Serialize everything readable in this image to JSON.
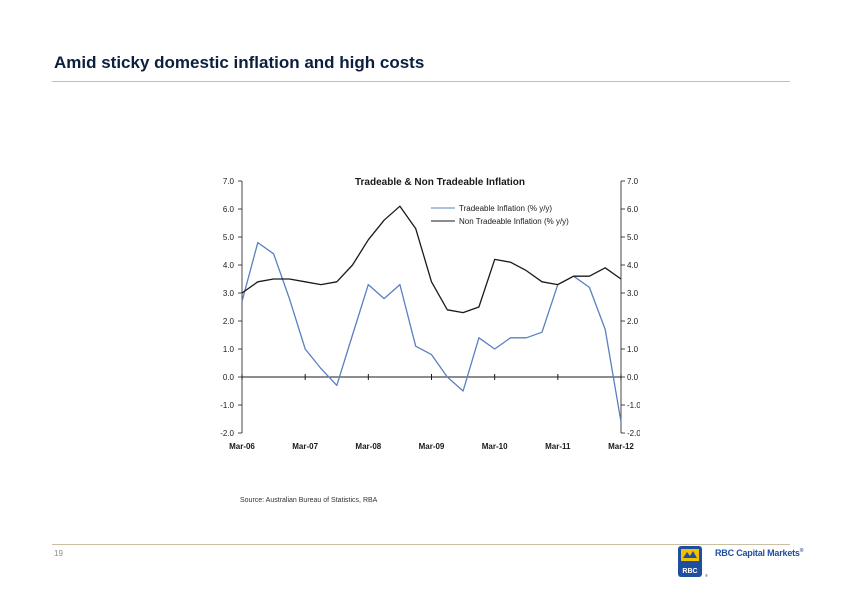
{
  "slide": {
    "title": "Amid sticky domestic inflation and high costs",
    "source": "Source: Australian Bureau of Statistics, RBA",
    "page_number": "19",
    "brand_text": "RBC Capital Markets",
    "brand_mark": "®",
    "logo_text": "RBC"
  },
  "colors": {
    "title": "#0b1f3f",
    "tradeable_series": "#5b7fbf",
    "non_tradeable_series": "#1a1a1a",
    "brand_blue": "#1f4ea1",
    "brand_gold": "#f2c200",
    "rule": "#c9bfa5"
  },
  "chart_data": {
    "type": "line",
    "title": "Tradeable & Non Tradeable Inflation",
    "x_tick_labels": [
      "Mar-06",
      "Mar-07",
      "Mar-08",
      "Mar-09",
      "Mar-10",
      "Mar-11",
      "Mar-12"
    ],
    "ylim": [
      -2.0,
      7.0
    ],
    "y_ticks_left": [
      "7.0",
      "6.0",
      "5.0",
      "4.0",
      "3.0",
      "2.0",
      "1.0",
      "0.0",
      "-1.0",
      "-2.0"
    ],
    "y_ticks_right": [
      "7.0",
      "6.0",
      "5.0",
      "4.0",
      "3.0",
      "2.0",
      "1.0",
      "0.0",
      "-1.0",
      "-2.0"
    ],
    "grid": false,
    "legend_position": "top-right",
    "x": [
      "Mar-06",
      "Jun-06",
      "Sep-06",
      "Dec-06",
      "Mar-07",
      "Jun-07",
      "Sep-07",
      "Dec-07",
      "Mar-08",
      "Jun-08",
      "Sep-08",
      "Dec-08",
      "Mar-09",
      "Jun-09",
      "Sep-09",
      "Dec-09",
      "Mar-10",
      "Jun-10",
      "Sep-10",
      "Dec-10",
      "Mar-11",
      "Jun-11",
      "Sep-11",
      "Dec-11",
      "Mar-12"
    ],
    "series": [
      {
        "name": "Tradeable Inflation (% y/y)",
        "values": [
          2.7,
          4.8,
          4.4,
          2.8,
          1.0,
          0.3,
          -0.3,
          1.5,
          3.3,
          2.8,
          3.3,
          1.1,
          0.8,
          0.0,
          -0.5,
          1.4,
          1.0,
          1.4,
          1.4,
          1.6,
          3.3,
          3.6,
          3.2,
          1.7,
          -1.6
        ]
      },
      {
        "name": "Non Tradeable Inflation (% y/y)",
        "values": [
          3.0,
          3.4,
          3.5,
          3.5,
          3.4,
          3.3,
          3.4,
          4.0,
          4.9,
          5.6,
          6.1,
          5.3,
          3.4,
          2.4,
          2.3,
          2.5,
          4.2,
          4.1,
          3.8,
          3.4,
          3.3,
          3.6,
          3.6,
          3.9,
          3.5
        ]
      }
    ]
  }
}
